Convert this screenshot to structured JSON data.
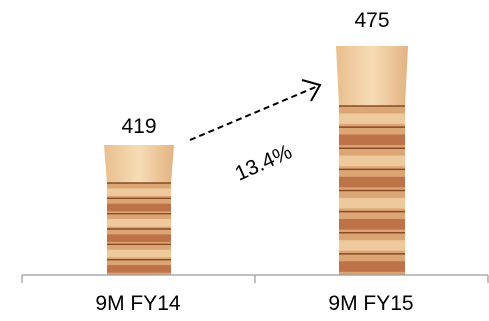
{
  "chart_data": {
    "type": "bar",
    "categories": [
      "9M FY14",
      "9M FY15"
    ],
    "values": [
      419,
      475
    ],
    "data_labels": [
      "419",
      "475"
    ],
    "growth_annotation": "13.4%",
    "title": "",
    "xlabel": "",
    "ylabel": "",
    "ylim": [
      0,
      475
    ],
    "grid": false,
    "legend": "none",
    "bar_style": "stacked-plywood-image",
    "colors": {
      "wood_light": "#f1cfa3",
      "wood_mid": "#dca574",
      "wood_dark": "#b9683f",
      "ply_line": "#8a4a24",
      "axis": "#9a9a9a",
      "arrow": "#000000"
    }
  }
}
